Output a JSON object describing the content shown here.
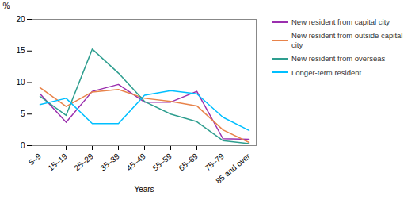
{
  "chart_data": {
    "type": "line",
    "xlabel": "Years",
    "ylabel": "%",
    "categories": [
      "5–9",
      "15–19",
      "25–29",
      "35–39",
      "45–49",
      "55–59",
      "65–69",
      "75–79",
      "85 and over"
    ],
    "series": [
      {
        "name": "New resident from capital city",
        "color": "#9B2FAE",
        "values": [
          8.2,
          3.7,
          8.6,
          9.7,
          6.9,
          6.9,
          8.6,
          1.1,
          1.0
        ]
      },
      {
        "name": "New resident from outside capital city",
        "color": "#E8834A",
        "values": [
          9.2,
          6.2,
          8.5,
          8.9,
          7.5,
          7.0,
          6.3,
          2.5,
          0.5
        ]
      },
      {
        "name": "New resident from overseas",
        "color": "#2E9E8F",
        "values": [
          7.8,
          4.8,
          15.3,
          11.5,
          7.0,
          5.0,
          3.8,
          0.8,
          0.3
        ]
      },
      {
        "name": "Longer-term resident",
        "color": "#00BFFF",
        "values": [
          6.5,
          7.5,
          3.5,
          3.5,
          8.0,
          8.7,
          8.2,
          4.5,
          2.4
        ]
      }
    ],
    "ylim": [
      0,
      20
    ],
    "yticks": [
      0,
      5,
      10,
      15,
      20
    ],
    "grid": false,
    "legend": "right"
  }
}
